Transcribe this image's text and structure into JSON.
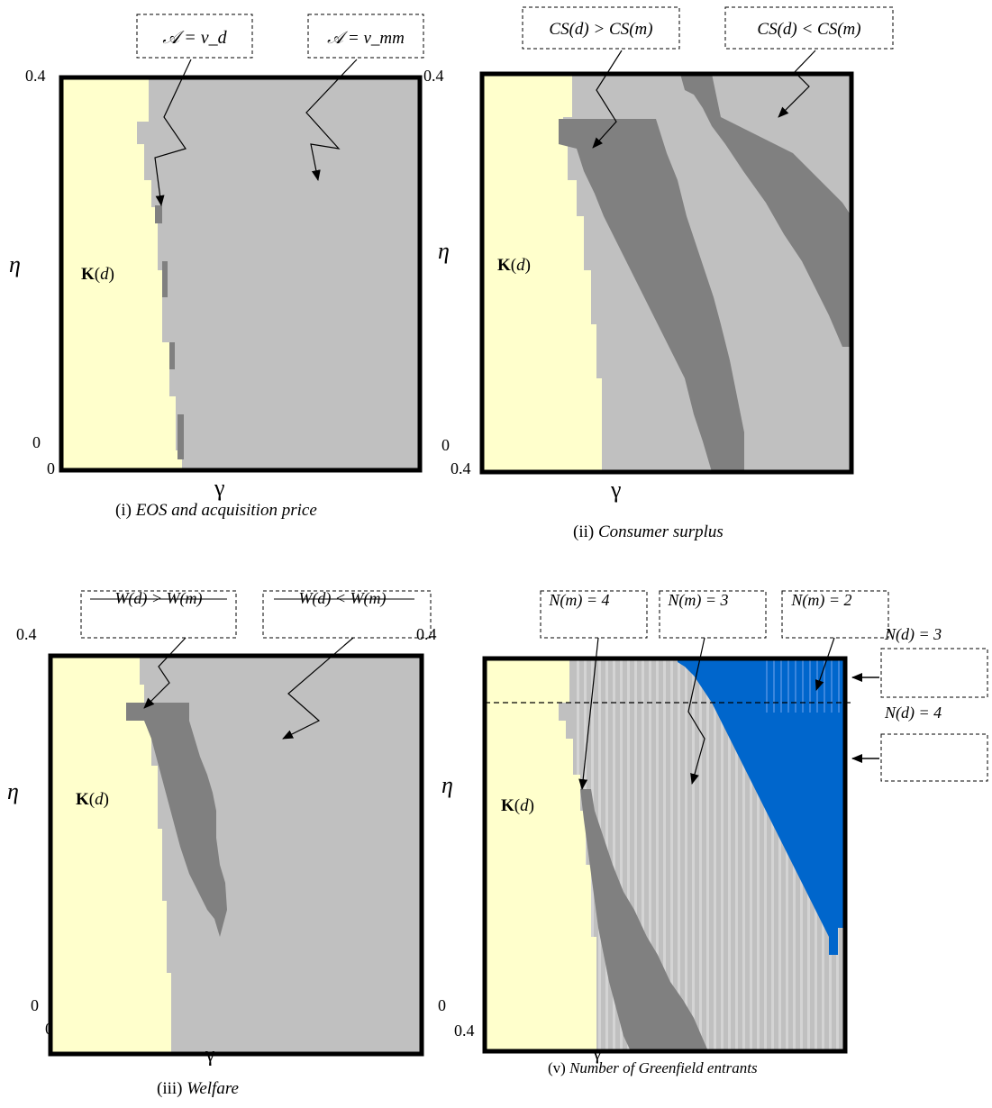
{
  "colors": {
    "yellow": "#ffffcc",
    "light_gray": "#c0c0c0",
    "dark_gray": "#808080",
    "blue": "#0066cc",
    "white": "#ffffff",
    "black": "#000000"
  },
  "panels": [
    {
      "id": "i",
      "caption_num": "(i)",
      "caption_title": "EOS and acquisition price",
      "y_label": "η",
      "x_label": "γ",
      "y_top_tick": "0.4",
      "y_bottom_tick": "0",
      "x_left_tick": "0",
      "region_label": "K(d)",
      "boxes": [
        "𝒜 = v_d",
        "𝒜 = v_mm"
      ]
    },
    {
      "id": "ii",
      "caption_num": "(ii)",
      "caption_title": "Consumer surplus",
      "y_label": "η",
      "x_label": "γ",
      "y_top_tick": "0.4",
      "y_bottom_tick": "0",
      "x_left_tick": "0.4",
      "region_label": "K(d)",
      "boxes": [
        "CS(d) > CS(m)",
        "CS(d) < CS(m)"
      ]
    },
    {
      "id": "iii",
      "caption_num": "(iii)",
      "caption_title": "Welfare",
      "y_label": "η",
      "x_label": "γ",
      "y_top_tick": "0.4",
      "y_bottom_tick": "0",
      "x_left_tick": "0",
      "region_label": "K(d)",
      "boxes": [
        "W(d) > W(m)",
        "W(d) < W(m)"
      ]
    },
    {
      "id": "v",
      "caption_num": "(v)",
      "caption_title": "Number of Greenfield entrants",
      "y_label": "η",
      "x_label": "γ",
      "y_top_tick": "0.4",
      "y_bottom_tick": "0",
      "x_left_tick": "0.4",
      "region_label": "K(d)",
      "boxes": [
        "N(m) = 4",
        "N(m) = 3",
        "N(m) = 2"
      ],
      "side_labels": [
        "N(d) = 3",
        "N(d) = 4"
      ]
    }
  ]
}
